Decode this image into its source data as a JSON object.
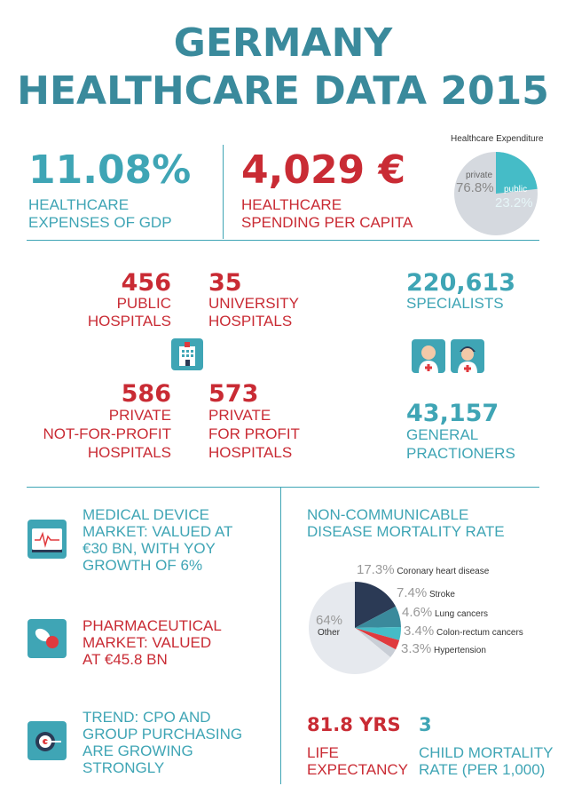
{
  "title": {
    "line1": "GERMANY",
    "line2": "HEALTHCARE DATA 2015"
  },
  "gdp": {
    "value": "11.08%",
    "label1": "HEALTHCARE",
    "label2": "EXPENSES OF GDP"
  },
  "per_capita": {
    "value": "4,029 €",
    "label1": "HEALTHCARE",
    "label2": "SPENDING PER CAPITA"
  },
  "expenditure_chart": {
    "title": "Healthcare Expenditure",
    "private_label": "private",
    "private_value": "76.8%",
    "public_label": "public",
    "public_value": "23.2%",
    "colors": {
      "private": "#d5d9df",
      "public": "#45bcc7"
    }
  },
  "hospitals": {
    "public": {
      "value": "456",
      "label1": "PUBLIC",
      "label2": "HOSPITALS"
    },
    "university": {
      "value": "35",
      "label1": "UNIVERSITY",
      "label2": "HOSPITALS"
    },
    "private_nfp": {
      "value": "586",
      "label1": "PRIVATE",
      "label2": "NOT-FOR-PROFIT",
      "label3": "HOSPITALS"
    },
    "private_fp": {
      "value": "573",
      "label1": "PRIVATE",
      "label2": "FOR PROFIT",
      "label3": "HOSPITALS"
    }
  },
  "specialists": {
    "value": "220,613",
    "label": "SPECIALISTS"
  },
  "general": {
    "value": "43,157",
    "label1": "GENERAL",
    "label2": "PRACTIONERS"
  },
  "medical_device": {
    "line1": "MEDICAL DEVICE",
    "line2": "MARKET: VALUED AT",
    "line3": "€30 BN, WITH YOY",
    "line4": "GROWTH OF 6%"
  },
  "pharma": {
    "line1": "PHARMACEUTICAL",
    "line2": "MARKET: VALUED",
    "line3": "AT €45.8 BN"
  },
  "trend": {
    "line1": "TREND: CPO AND",
    "line2": "GROUP PURCHASING",
    "line3": "ARE GROWING",
    "line4": "STRONGLY"
  },
  "ncd": {
    "title1": "NON-COMMUNICABLE",
    "title2": "DISEASE MORTALITY RATE"
  },
  "chart_data": {
    "type": "pie",
    "title": "NON-COMMUNICABLE DISEASE MORTALITY RATE",
    "slices": [
      {
        "label": "Coronary heart disease",
        "value": 17.3,
        "pct": "17.3%",
        "color": "#2b3a55"
      },
      {
        "label": "Stroke",
        "value": 7.4,
        "pct": "7.4%",
        "color": "#3a8a9c"
      },
      {
        "label": "Lung cancers",
        "value": 4.6,
        "pct": "4.6%",
        "color": "#45bcc7"
      },
      {
        "label": "Colon-rectum cancers",
        "value": 3.4,
        "pct": "3.4%",
        "color": "#e03a3e"
      },
      {
        "label": "Hypertension",
        "value": 3.3,
        "pct": "3.3%",
        "color": "#c9ced6"
      },
      {
        "label": "Other",
        "value": 64,
        "pct": "64%",
        "color": "#e6e9ee"
      }
    ]
  },
  "life": {
    "value": "81.8 YRS",
    "label1": "LIFE",
    "label2": "EXPECTANCY"
  },
  "child": {
    "value": "3",
    "label1": "CHILD MORTALITY",
    "label2": "RATE (PER 1,000)"
  }
}
